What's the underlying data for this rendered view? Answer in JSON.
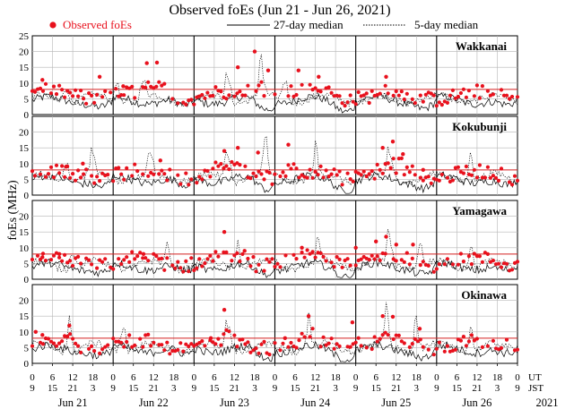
{
  "chart_data": {
    "type": "scatter",
    "title": "Observed foEs (Jun 21 - Jun 26, 2021)",
    "ylabel": "foEs (MHz)",
    "ylim": [
      0,
      25
    ],
    "yticks": [
      0,
      5,
      10,
      15,
      20,
      25
    ],
    "xlim_hours": [
      0,
      144
    ],
    "ut_labels": [
      "0",
      "6",
      "12",
      "18",
      "0",
      "6",
      "12",
      "18",
      "0",
      "6",
      "12",
      "18",
      "0",
      "6",
      "12",
      "18",
      "0",
      "6",
      "12",
      "18",
      "0",
      "6",
      "12",
      "18",
      "0"
    ],
    "jst_labels": [
      "9",
      "15",
      "21",
      "3",
      "9",
      "15",
      "21",
      "3",
      "9",
      "15",
      "21",
      "3",
      "9",
      "15",
      "21",
      "3",
      "9",
      "15",
      "21",
      "3",
      "9",
      "15",
      "21",
      "3",
      "9"
    ],
    "ut_label": "UT",
    "jst_label": "JST",
    "dates": [
      "Jun 21",
      "Jun 22",
      "Jun 23",
      "Jun 24",
      "Jun 25",
      "Jun 26"
    ],
    "year": "2021",
    "legend": [
      {
        "name": "Observed foEs",
        "style": "red-dots"
      },
      {
        "name": "27-day median",
        "style": "solid-black"
      },
      {
        "name": "5-day median",
        "style": "dotted-black"
      }
    ],
    "reference_line_mhz": 8,
    "colors": {
      "observed": "#e8111d",
      "reference": "#d42020",
      "median": "#000000"
    },
    "panels": [
      {
        "station": "Wakkanai",
        "base": 4.5,
        "spikes": [
          [
            10,
            8
          ],
          [
            25,
            9
          ],
          [
            33,
            8
          ],
          [
            58,
            13
          ],
          [
            68,
            16
          ],
          [
            75,
            9
          ]
        ],
        "observed": [
          [
            3,
            11
          ],
          [
            20,
            12
          ],
          [
            27,
            9
          ],
          [
            34,
            16.3
          ],
          [
            37,
            16.5
          ],
          [
            61,
            15
          ],
          [
            66,
            20
          ],
          [
            70,
            14
          ],
          [
            79,
            14
          ],
          [
            85,
            12
          ],
          [
            105,
            12
          ]
        ]
      },
      {
        "station": "Kokubunji",
        "base": 5,
        "spikes": [
          [
            10,
            11
          ],
          [
            18,
            11
          ],
          [
            35,
            12
          ],
          [
            58,
            15
          ],
          [
            69,
            16
          ],
          [
            84,
            11
          ],
          [
            106,
            12
          ],
          [
            130,
            11
          ]
        ],
        "observed": [
          [
            10,
            9
          ],
          [
            15,
            10
          ],
          [
            38,
            11
          ],
          [
            57,
            14
          ],
          [
            61,
            15
          ],
          [
            67,
            13.5
          ],
          [
            76,
            16
          ],
          [
            104,
            15
          ],
          [
            107,
            17
          ],
          [
            110,
            13
          ],
          [
            116,
            8
          ]
        ]
      },
      {
        "station": "Yamagawa",
        "base": 4,
        "spikes": [
          [
            12,
            9
          ],
          [
            40,
            9
          ],
          [
            61,
            10
          ],
          [
            85,
            10
          ],
          [
            106,
            14
          ],
          [
            115,
            11
          ],
          [
            130,
            9
          ]
        ],
        "observed": [
          [
            3,
            7
          ],
          [
            8,
            8
          ],
          [
            33,
            8
          ],
          [
            57,
            15
          ],
          [
            63,
            9
          ],
          [
            80,
            10
          ],
          [
            96,
            10
          ],
          [
            102,
            12
          ],
          [
            105,
            13.5
          ],
          [
            108,
            11
          ],
          [
            113,
            11
          ]
        ]
      },
      {
        "station": "Okinawa",
        "base": 4.5,
        "spikes": [
          [
            11,
            11
          ],
          [
            27,
            12
          ],
          [
            58,
            14
          ],
          [
            82,
            12
          ],
          [
            105,
            15
          ],
          [
            114,
            14
          ],
          [
            130,
            9
          ]
        ],
        "observed": [
          [
            1,
            10
          ],
          [
            3,
            9
          ],
          [
            11,
            12
          ],
          [
            53,
            8
          ],
          [
            57,
            17
          ],
          [
            75,
            8
          ],
          [
            82,
            15
          ],
          [
            95,
            13
          ],
          [
            104,
            15
          ],
          [
            107,
            14.8
          ],
          [
            115,
            11
          ]
        ]
      }
    ]
  }
}
